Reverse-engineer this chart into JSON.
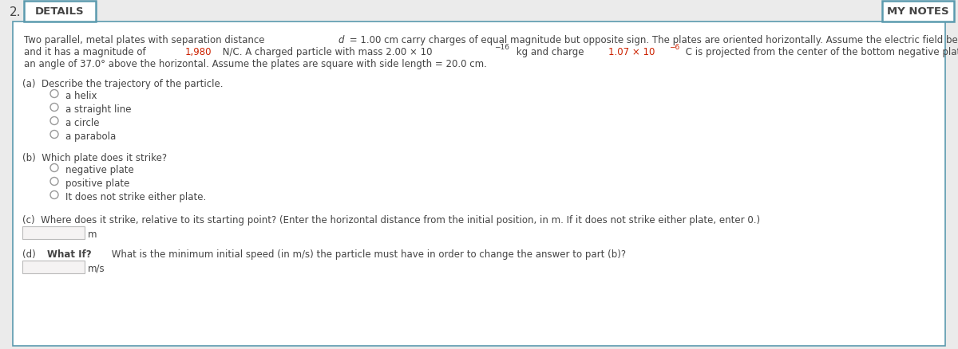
{
  "title_number": "2.",
  "tab_details": "DETAILS",
  "tab_notes": "MY NOTES",
  "bg_color": "#ebebeb",
  "tab_bg": "#ffffff",
  "tab_border": "#5b9aae",
  "body_bg": "#ffffff",
  "body_border": "#5b9aae",
  "text_color": "#444444",
  "highlight_color": "#cc2200",
  "part_a_label": "(a)  Describe the trajectory of the particle.",
  "part_a_options": [
    "a helix",
    "a straight line",
    "a circle",
    "a parabola"
  ],
  "part_b_label": "(b)  Which plate does it strike?",
  "part_b_options": [
    "negative plate",
    "positive plate",
    "It does not strike either plate."
  ],
  "part_c_label": "(c)  Where does it strike, relative to its starting point? (Enter the horizontal distance from the initial position, in m. If it does not strike either plate, enter 0.)",
  "part_c_unit": "m",
  "part_d_bold": "What If?",
  "part_d_text": " What is the minimum initial speed (in m/s) the particle must have in order to change the answer to part (b)?",
  "part_d_unit": "m/s",
  "font_size_body": 8.5,
  "font_size_tab": 9.5,
  "radio_color": "#999999",
  "input_box_color": "#f5f3f3",
  "input_box_border": "#bbbbbb"
}
